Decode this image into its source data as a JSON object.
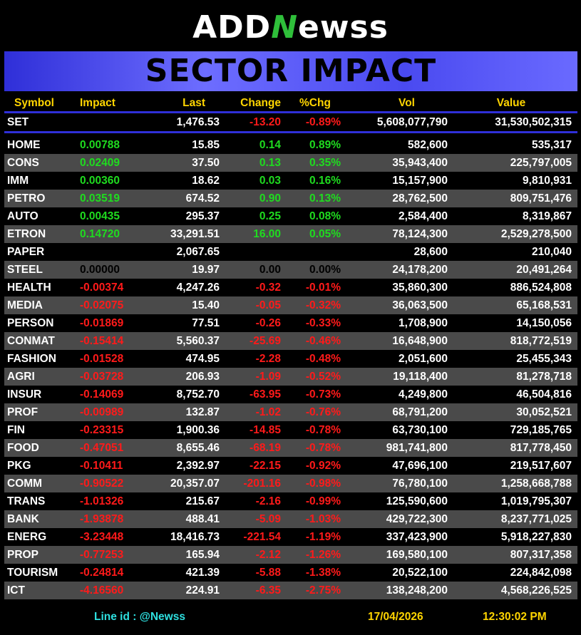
{
  "logo": {
    "part1": "ADD",
    "part2": "N",
    "part3": "ewss"
  },
  "banner_title": "SECTOR IMPACT",
  "columns": [
    "Symbol",
    "Impact",
    "Last",
    "Change",
    "%Chg",
    "Vol",
    "Value"
  ],
  "index_row": {
    "symbol": "SET",
    "impact": "",
    "last": "1,476.53",
    "change": "-13.20",
    "pct": "-0.89%",
    "vol": "5,608,077,790",
    "value": "31,530,502,315",
    "trend": "down"
  },
  "rows": [
    {
      "symbol": "HOME",
      "impact": "0.00788",
      "last": "15.85",
      "change": "0.14",
      "pct": "0.89%",
      "vol": "582,600",
      "value": "535,317",
      "trend": "up"
    },
    {
      "symbol": "CONS",
      "impact": "0.02409",
      "last": "37.50",
      "change": "0.13",
      "pct": "0.35%",
      "vol": "35,943,400",
      "value": "225,797,005",
      "trend": "up"
    },
    {
      "symbol": "IMM",
      "impact": "0.00360",
      "last": "18.62",
      "change": "0.03",
      "pct": "0.16%",
      "vol": "15,157,900",
      "value": "9,810,931",
      "trend": "up"
    },
    {
      "symbol": "PETRO",
      "impact": "0.03519",
      "last": "674.52",
      "change": "0.90",
      "pct": "0.13%",
      "vol": "28,762,500",
      "value": "809,751,476",
      "trend": "up"
    },
    {
      "symbol": "AUTO",
      "impact": "0.00435",
      "last": "295.37",
      "change": "0.25",
      "pct": "0.08%",
      "vol": "2,584,400",
      "value": "8,319,867",
      "trend": "up"
    },
    {
      "symbol": "ETRON",
      "impact": "0.14720",
      "last": "33,291.51",
      "change": "16.00",
      "pct": "0.05%",
      "vol": "78,124,300",
      "value": "2,529,278,500",
      "trend": "up"
    },
    {
      "symbol": "PAPER",
      "impact": "",
      "last": "2,067.65",
      "change": "",
      "pct": "",
      "vol": "28,600",
      "value": "210,040",
      "trend": "flat"
    },
    {
      "symbol": "STEEL",
      "impact": "0.00000",
      "last": "19.97",
      "change": "0.00",
      "pct": "0.00%",
      "vol": "24,178,200",
      "value": "20,491,264",
      "trend": "flat"
    },
    {
      "symbol": "HEALTH",
      "impact": "-0.00374",
      "last": "4,247.26",
      "change": "-0.32",
      "pct": "-0.01%",
      "vol": "35,860,300",
      "value": "886,524,808",
      "trend": "down"
    },
    {
      "symbol": "MEDIA",
      "impact": "-0.02075",
      "last": "15.40",
      "change": "-0.05",
      "pct": "-0.32%",
      "vol": "36,063,500",
      "value": "65,168,531",
      "trend": "down"
    },
    {
      "symbol": "PERSON",
      "impact": "-0.01869",
      "last": "77.51",
      "change": "-0.26",
      "pct": "-0.33%",
      "vol": "1,708,900",
      "value": "14,150,056",
      "trend": "down"
    },
    {
      "symbol": "CONMAT",
      "impact": "-0.15414",
      "last": "5,560.37",
      "change": "-25.69",
      "pct": "-0.46%",
      "vol": "16,648,900",
      "value": "818,772,519",
      "trend": "down"
    },
    {
      "symbol": "FASHION",
      "impact": "-0.01528",
      "last": "474.95",
      "change": "-2.28",
      "pct": "-0.48%",
      "vol": "2,051,600",
      "value": "25,455,343",
      "trend": "down"
    },
    {
      "symbol": "AGRI",
      "impact": "-0.03728",
      "last": "206.93",
      "change": "-1.09",
      "pct": "-0.52%",
      "vol": "19,118,400",
      "value": "81,278,718",
      "trend": "down"
    },
    {
      "symbol": "INSUR",
      "impact": "-0.14069",
      "last": "8,752.70",
      "change": "-63.95",
      "pct": "-0.73%",
      "vol": "4,249,800",
      "value": "46,504,816",
      "trend": "down"
    },
    {
      "symbol": "PROF",
      "impact": "-0.00989",
      "last": "132.87",
      "change": "-1.02",
      "pct": "-0.76%",
      "vol": "68,791,200",
      "value": "30,052,521",
      "trend": "down"
    },
    {
      "symbol": "FIN",
      "impact": "-0.23315",
      "last": "1,900.36",
      "change": "-14.85",
      "pct": "-0.78%",
      "vol": "63,730,100",
      "value": "729,185,765",
      "trend": "down"
    },
    {
      "symbol": "FOOD",
      "impact": "-0.47051",
      "last": "8,655.46",
      "change": "-68.19",
      "pct": "-0.78%",
      "vol": "981,741,800",
      "value": "817,778,450",
      "trend": "down"
    },
    {
      "symbol": "PKG",
      "impact": "-0.10411",
      "last": "2,392.97",
      "change": "-22.15",
      "pct": "-0.92%",
      "vol": "47,696,100",
      "value": "219,517,607",
      "trend": "down"
    },
    {
      "symbol": "COMM",
      "impact": "-0.90522",
      "last": "20,357.07",
      "change": "-201.16",
      "pct": "-0.98%",
      "vol": "76,780,100",
      "value": "1,258,668,788",
      "trend": "down"
    },
    {
      "symbol": "TRANS",
      "impact": "-1.01326",
      "last": "215.67",
      "change": "-2.16",
      "pct": "-0.99%",
      "vol": "125,590,600",
      "value": "1,019,795,307",
      "trend": "down"
    },
    {
      "symbol": "BANK",
      "impact": "-1.93878",
      "last": "488.41",
      "change": "-5.09",
      "pct": "-1.03%",
      "vol": "429,722,300",
      "value": "8,237,771,025",
      "trend": "down"
    },
    {
      "symbol": "ENERG",
      "impact": "-3.23448",
      "last": "18,416.73",
      "change": "-221.54",
      "pct": "-1.19%",
      "vol": "337,423,900",
      "value": "5,918,227,830",
      "trend": "down"
    },
    {
      "symbol": "PROP",
      "impact": "-0.77253",
      "last": "165.94",
      "change": "-2.12",
      "pct": "-1.26%",
      "vol": "169,580,100",
      "value": "807,317,358",
      "trend": "down"
    },
    {
      "symbol": "TOURISM",
      "impact": "-0.24814",
      "last": "421.39",
      "change": "-5.88",
      "pct": "-1.38%",
      "vol": "20,522,100",
      "value": "224,842,098",
      "trend": "down"
    },
    {
      "symbol": "ICT",
      "impact": "-4.16560",
      "last": "224.91",
      "change": "-6.35",
      "pct": "-2.75%",
      "vol": "138,248,200",
      "value": "4,568,226,525",
      "trend": "down"
    }
  ],
  "footer": {
    "line_id": "Line id  : @Newss",
    "date": "17/04/2026",
    "time": "12:30:02 PM"
  },
  "colors": {
    "up": "#1fdc1f",
    "down": "#ff1a1a",
    "header": "#ffd500",
    "banner": "#4a4af0",
    "row_alt": "#4a4a4a"
  }
}
